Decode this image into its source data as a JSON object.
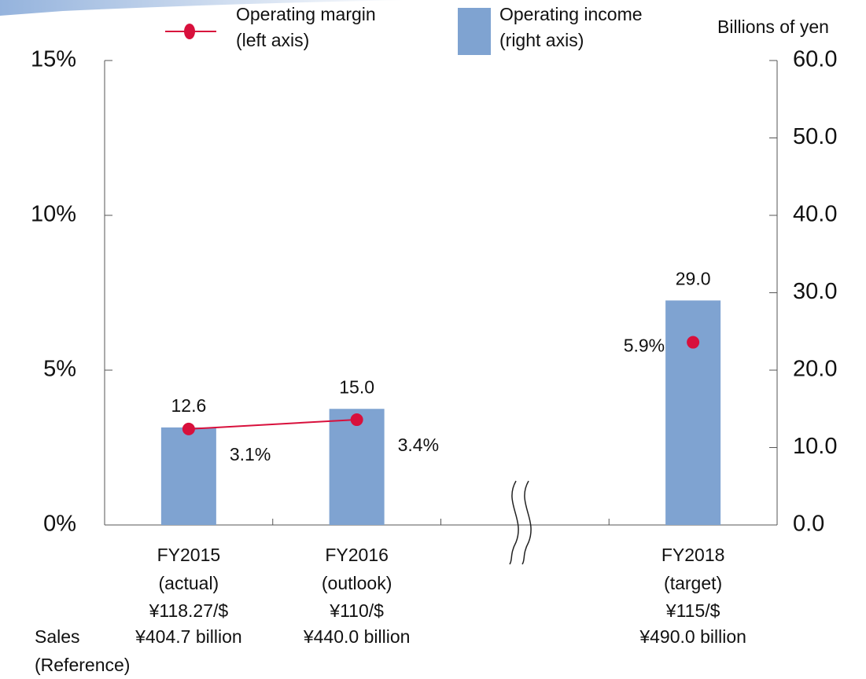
{
  "chart_data": {
    "type": "bar-line",
    "categories": [
      "FY2015",
      "FY2016",
      null,
      "FY2018"
    ],
    "category_notes": [
      "(actual)",
      "(outlook)",
      null,
      "(target)"
    ],
    "exchange_rates": [
      "¥118.27/$",
      "¥110/$",
      null,
      "¥115/$"
    ],
    "sales_label": [
      "Sales",
      "(Reference)"
    ],
    "sales": [
      "¥404.7 billion",
      "¥440.0 billion",
      null,
      "¥490.0 billion"
    ],
    "y2_unit": "Billions of yen",
    "series": [
      {
        "name": "Operating margin",
        "legend_note": "(left axis)",
        "type": "line",
        "axis": "y",
        "color": "#d8103c",
        "values": [
          3.1,
          3.4,
          null,
          5.9
        ],
        "value_labels": [
          "3.1%",
          "3.4%",
          null,
          "5.9%"
        ]
      },
      {
        "name": "Operating income",
        "legend_note": "(right axis)",
        "type": "bar",
        "axis": "y2",
        "color": "#7fa3d1",
        "values": [
          12.6,
          15.0,
          null,
          29.0
        ],
        "value_labels": [
          "12.6",
          "15.0",
          null,
          "29.0"
        ]
      }
    ],
    "ylim": [
      0,
      15
    ],
    "yticks": [
      {
        "value": 0,
        "label": "0%"
      },
      {
        "value": 5,
        "label": "5%"
      },
      {
        "value": 10,
        "label": "10%"
      },
      {
        "value": 15,
        "label": "15%"
      }
    ],
    "y2lim": [
      0,
      60
    ],
    "y2ticks": [
      {
        "value": 0,
        "label": "0.0"
      },
      {
        "value": 10,
        "label": "10.0"
      },
      {
        "value": 20,
        "label": "20.0"
      },
      {
        "value": 30,
        "label": "30.0"
      },
      {
        "value": 40,
        "label": "40.0"
      },
      {
        "value": 50,
        "label": "50.0"
      },
      {
        "value": 60,
        "label": "60.0"
      }
    ],
    "grid": false
  }
}
